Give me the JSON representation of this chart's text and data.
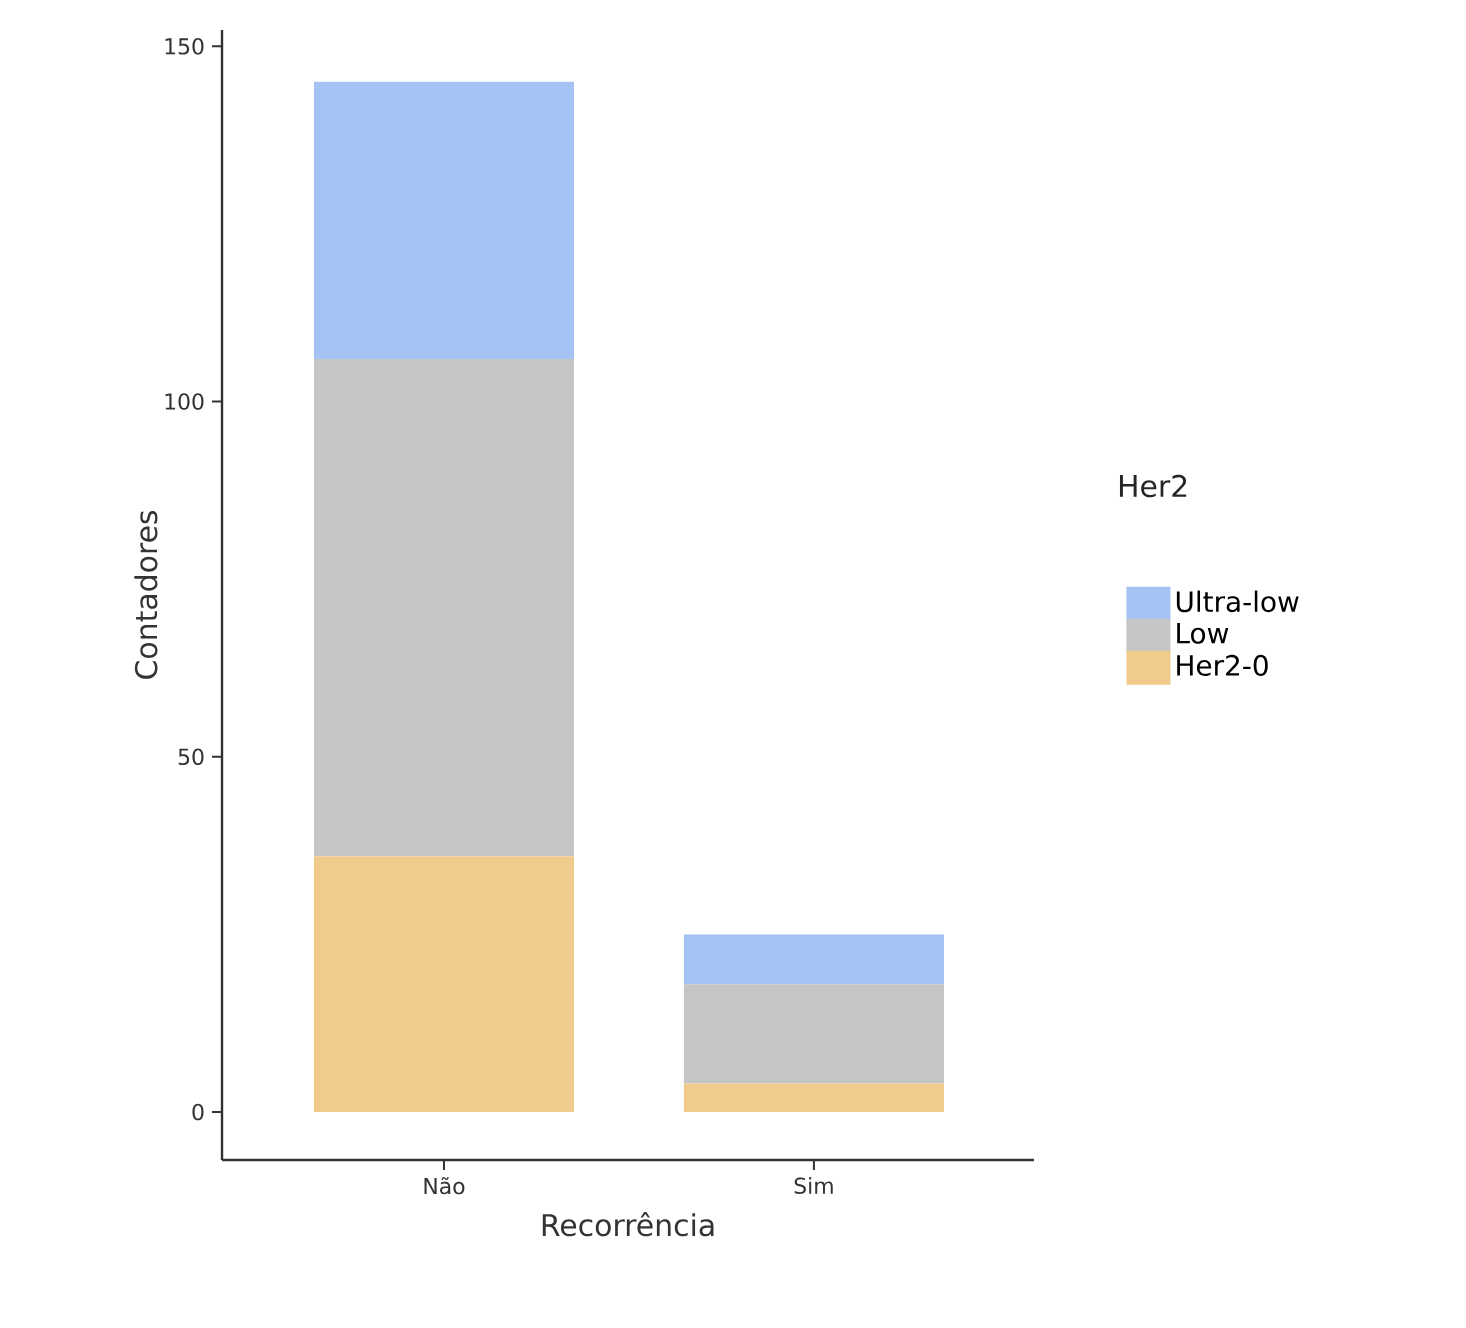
{
  "chart_data": {
    "type": "bar",
    "stacked": true,
    "xlabel": "Recorrência",
    "ylabel": "Contadores",
    "legend_title": "Her2",
    "legend": "right",
    "categories": [
      "Não",
      "Sim"
    ],
    "series": [
      {
        "name": "Her2-0",
        "color": "#f0cb8c",
        "values": [
          36,
          4
        ]
      },
      {
        "name": "Low",
        "color": "#c5c5c5",
        "values": [
          70,
          14
        ]
      },
      {
        "name": "Ultra-low",
        "color": "#a4c2f4",
        "values": [
          39,
          7
        ]
      }
    ],
    "ylim": [
      -6.75,
      152.3
    ],
    "yticks": [
      0,
      50,
      100,
      150
    ],
    "grid": false
  }
}
